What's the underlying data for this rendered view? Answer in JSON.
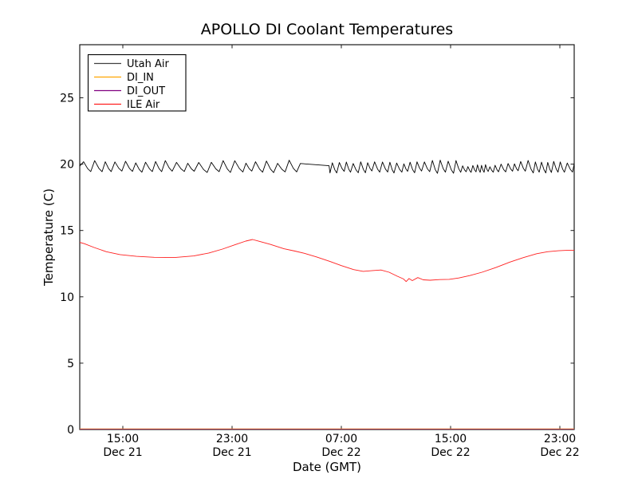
{
  "chart_data": {
    "type": "line",
    "title": "APOLLO DI Coolant Temperatures",
    "xlabel": "Date (GMT)",
    "ylabel": "Temperature (C)",
    "x_unit": "hours since Dec 21 00:00 GMT",
    "xlim": [
      11.85,
      48.05
    ],
    "ylim": [
      0,
      29
    ],
    "grid": false,
    "yticks": [
      0,
      5,
      10,
      15,
      20,
      25
    ],
    "xticks": [
      {
        "value": 15,
        "time": "15:00",
        "date": "Dec 21"
      },
      {
        "value": 23,
        "time": "23:00",
        "date": "Dec 21"
      },
      {
        "value": 31,
        "time": "07:00",
        "date": "Dec 22"
      },
      {
        "value": 39,
        "time": "15:00",
        "date": "Dec 22"
      },
      {
        "value": 47,
        "time": "23:00",
        "date": "Dec 22"
      }
    ],
    "legend": {
      "position": "upper-left",
      "entries": [
        {
          "label": "Utah Air",
          "color": "#000000"
        },
        {
          "label": "DI_IN",
          "color": "#ffa500"
        },
        {
          "label": "DI_OUT",
          "color": "#800080"
        },
        {
          "label": "ILE Air",
          "color": "#ff2020"
        }
      ]
    },
    "series": [
      {
        "name": "Utah Air",
        "color": "#000000",
        "shape": "sawtooth-oscillation",
        "summary": "oscillates between ~19.3 and ~20.3 C with ~30-50 min period; brief plateau ~20.0-19.9 around Dec 22 04:00-06:00",
        "generator": {
          "seed": 11,
          "start": 11.85,
          "end": 48.05,
          "start_value": 19.85,
          "default": {
            "period": 0.5,
            "peak_min": 20.0,
            "peak_max": 20.28,
            "trough_min": 19.33,
            "trough_max": 19.5
          },
          "overrides": [
            {
              "from": 11.85,
              "to": 28.0,
              "period": 0.8,
              "peak_min": 20.05,
              "peak_max": 20.3,
              "trough_min": 19.35,
              "trough_max": 19.5
            },
            {
              "from": 37.2,
              "to": 38.9,
              "period": 0.55,
              "peak_min": 20.2,
              "peak_max": 20.35,
              "trough_min": 19.3,
              "trough_max": 19.4
            },
            {
              "from": 39.5,
              "to": 42.5,
              "period": 0.34,
              "peak_min": 19.8,
              "peak_max": 20.0,
              "trough_min": 19.35,
              "trough_max": 19.45
            }
          ],
          "flats": [
            {
              "from": 28.0,
              "to": 30.1,
              "v1": 20.05,
              "v2": 19.88
            }
          ]
        }
      },
      {
        "name": "DI_IN",
        "color": "#ffa500",
        "summary": "flat at 0 C (overlaps bottom axis)",
        "points": [
          [
            11.85,
            0
          ],
          [
            48.05,
            0
          ]
        ]
      },
      {
        "name": "DI_OUT",
        "color": "#800080",
        "summary": "flat at 0 C (overlaps bottom axis)",
        "points": [
          [
            11.85,
            0
          ],
          [
            48.05,
            0
          ]
        ]
      },
      {
        "name": "ILE Air",
        "color": "#ff2020",
        "summary": "smooth curve: 14.1 dips to 13.0, peaks 14.3 near Dec 22 00:30, falls to min ~11.2 around 11:00-15:00, recovers to ~13.5",
        "points": [
          [
            11.85,
            14.1
          ],
          [
            12.2,
            14.0
          ],
          [
            12.9,
            13.72
          ],
          [
            13.8,
            13.4
          ],
          [
            14.8,
            13.18
          ],
          [
            16.0,
            13.05
          ],
          [
            17.3,
            12.98
          ],
          [
            18.8,
            12.96
          ],
          [
            20.2,
            13.08
          ],
          [
            21.3,
            13.3
          ],
          [
            22.3,
            13.6
          ],
          [
            23.3,
            13.95
          ],
          [
            24.0,
            14.2
          ],
          [
            24.5,
            14.32
          ],
          [
            25.0,
            14.18
          ],
          [
            25.8,
            13.95
          ],
          [
            26.8,
            13.62
          ],
          [
            27.6,
            13.45
          ],
          [
            28.3,
            13.28
          ],
          [
            29.2,
            13.0
          ],
          [
            30.2,
            12.65
          ],
          [
            31.0,
            12.35
          ],
          [
            31.9,
            12.05
          ],
          [
            32.6,
            11.92
          ],
          [
            33.3,
            11.98
          ],
          [
            33.9,
            12.02
          ],
          [
            34.5,
            11.85
          ],
          [
            35.1,
            11.55
          ],
          [
            35.55,
            11.35
          ],
          [
            35.75,
            11.15
          ],
          [
            35.95,
            11.38
          ],
          [
            36.2,
            11.22
          ],
          [
            36.6,
            11.45
          ],
          [
            37.0,
            11.28
          ],
          [
            37.5,
            11.25
          ],
          [
            38.2,
            11.3
          ],
          [
            38.9,
            11.32
          ],
          [
            39.6,
            11.42
          ],
          [
            40.4,
            11.6
          ],
          [
            41.3,
            11.85
          ],
          [
            42.3,
            12.2
          ],
          [
            43.3,
            12.6
          ],
          [
            44.3,
            12.95
          ],
          [
            45.3,
            13.25
          ],
          [
            46.1,
            13.4
          ],
          [
            46.9,
            13.47
          ],
          [
            47.5,
            13.5
          ],
          [
            48.05,
            13.5
          ]
        ]
      }
    ],
    "colors": {
      "background": "#ffffff",
      "axes": "#000000"
    }
  }
}
